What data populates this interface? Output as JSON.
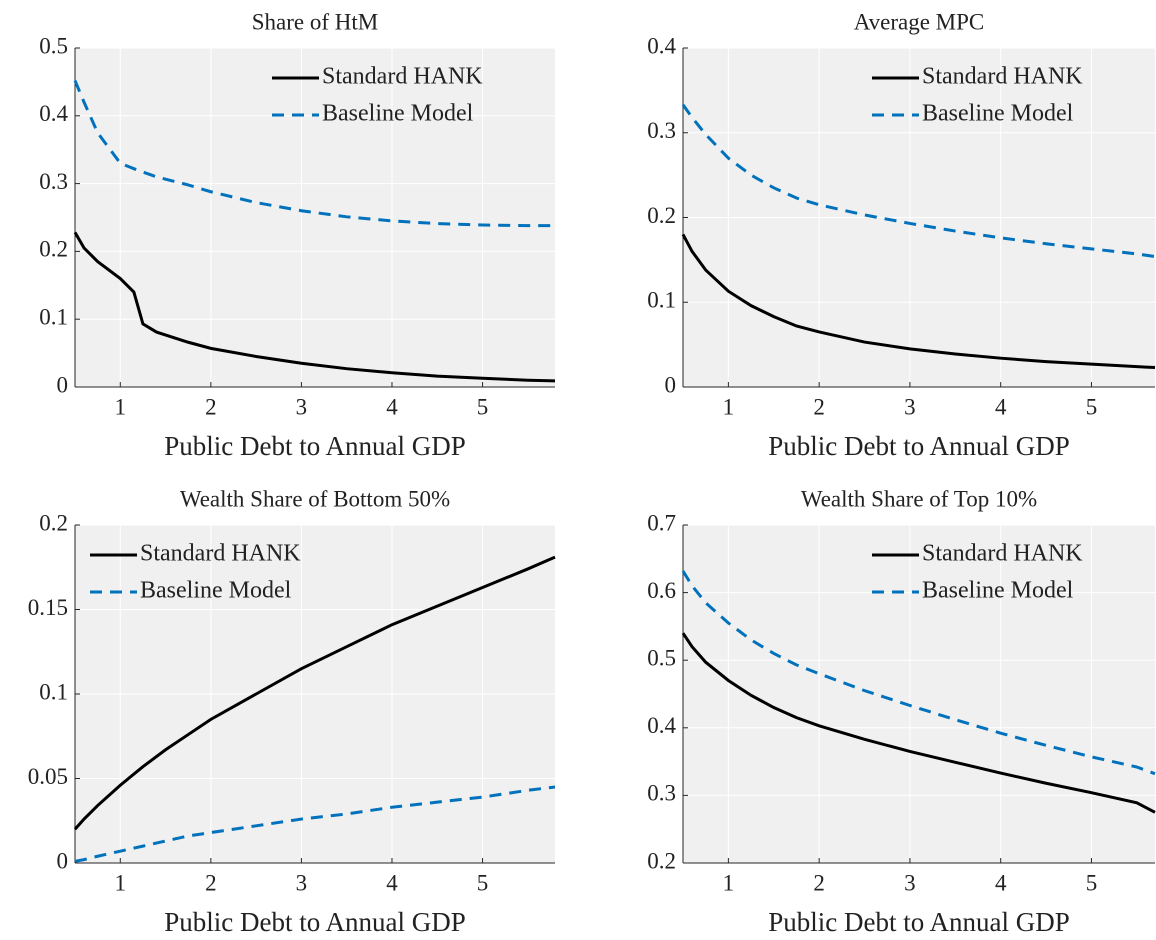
{
  "chart_data": [
    {
      "type": "line",
      "title": "Share of HtM",
      "xlabel": "Public Debt to Annual GDP",
      "x": [
        0.5,
        0.6,
        0.75,
        1,
        1.15,
        1.25,
        1.4,
        1.75,
        2,
        2.5,
        3,
        3.5,
        4,
        4.5,
        5,
        5.5,
        5.8
      ],
      "series": [
        {
          "name": "Standard HANK",
          "color": "#000000",
          "style": "solid",
          "values": [
            0.228,
            0.205,
            0.185,
            0.16,
            0.14,
            0.093,
            0.081,
            0.066,
            0.057,
            0.045,
            0.035,
            0.027,
            0.021,
            0.016,
            0.013,
            0.01,
            0.009
          ]
        },
        {
          "name": "Baseline Model",
          "color": "#0072bd",
          "style": "dashed",
          "values": [
            0.452,
            0.42,
            0.375,
            0.33,
            0.322,
            0.317,
            0.31,
            0.298,
            0.288,
            0.272,
            0.26,
            0.251,
            0.245,
            0.241,
            0.239,
            0.238,
            0.238
          ]
        }
      ],
      "xlim": [
        0.5,
        5.8
      ],
      "xticks": [
        1,
        2,
        3,
        4,
        5
      ],
      "ylim": [
        0,
        0.5
      ],
      "yticks": [
        0,
        0.1,
        0.2,
        0.3,
        0.4,
        0.5
      ],
      "grid": true,
      "legend": "upper right"
    },
    {
      "type": "line",
      "title": "Average MPC",
      "xlabel": "Public Debt to Annual GDP",
      "x": [
        0.5,
        0.6,
        0.75,
        1,
        1.25,
        1.5,
        1.75,
        2,
        2.5,
        3,
        3.5,
        4,
        4.5,
        5,
        5.5,
        5.7
      ],
      "series": [
        {
          "name": "Standard HANK",
          "color": "#000000",
          "style": "solid",
          "values": [
            0.18,
            0.16,
            0.138,
            0.113,
            0.096,
            0.083,
            0.072,
            0.065,
            0.053,
            0.045,
            0.039,
            0.034,
            0.03,
            0.027,
            0.024,
            0.023
          ]
        },
        {
          "name": "Baseline Model",
          "color": "#0072bd",
          "style": "dashed",
          "values": [
            0.333,
            0.318,
            0.298,
            0.27,
            0.25,
            0.235,
            0.223,
            0.215,
            0.203,
            0.193,
            0.184,
            0.176,
            0.169,
            0.163,
            0.157,
            0.154
          ]
        }
      ],
      "xlim": [
        0.5,
        5.7
      ],
      "xticks": [
        1,
        2,
        3,
        4,
        5
      ],
      "ylim": [
        0,
        0.4
      ],
      "yticks": [
        0,
        0.1,
        0.2,
        0.3,
        0.4
      ],
      "grid": true,
      "legend": "upper right"
    },
    {
      "type": "line",
      "title": "Wealth Share of Bottom 50%",
      "xlabel": "Public Debt to Annual GDP",
      "x": [
        0.5,
        0.6,
        0.75,
        1,
        1.25,
        1.5,
        1.75,
        2,
        2.5,
        3,
        3.5,
        4,
        4.5,
        5,
        5.5,
        5.8
      ],
      "series": [
        {
          "name": "Standard HANK",
          "color": "#000000",
          "style": "solid",
          "values": [
            0.02,
            0.026,
            0.034,
            0.046,
            0.057,
            0.067,
            0.076,
            0.085,
            0.1,
            0.115,
            0.128,
            0.141,
            0.152,
            0.163,
            0.174,
            0.181
          ]
        },
        {
          "name": "Baseline Model",
          "color": "#0072bd",
          "style": "dashed",
          "values": [
            0.001,
            0.002,
            0.004,
            0.007,
            0.01,
            0.013,
            0.016,
            0.018,
            0.022,
            0.026,
            0.029,
            0.033,
            0.036,
            0.039,
            0.043,
            0.045
          ]
        }
      ],
      "xlim": [
        0.5,
        5.8
      ],
      "xticks": [
        1,
        2,
        3,
        4,
        5
      ],
      "ylim": [
        0,
        0.2
      ],
      "yticks": [
        0,
        0.05,
        0.1,
        0.15,
        0.2
      ],
      "grid": true,
      "legend": "upper left"
    },
    {
      "type": "line",
      "title": "Wealth Share of Top 10%",
      "xlabel": "Public Debt to Annual GDP",
      "x": [
        0.5,
        0.6,
        0.75,
        1,
        1.25,
        1.5,
        1.75,
        2,
        2.5,
        3,
        3.5,
        4,
        4.5,
        5,
        5.5,
        5.7
      ],
      "series": [
        {
          "name": "Standard HANK",
          "color": "#000000",
          "style": "solid",
          "values": [
            0.54,
            0.52,
            0.497,
            0.47,
            0.448,
            0.43,
            0.415,
            0.403,
            0.383,
            0.365,
            0.349,
            0.333,
            0.318,
            0.304,
            0.289,
            0.275
          ]
        },
        {
          "name": "Baseline Model",
          "color": "#0072bd",
          "style": "dashed",
          "values": [
            0.632,
            0.61,
            0.585,
            0.555,
            0.53,
            0.51,
            0.493,
            0.48,
            0.455,
            0.433,
            0.412,
            0.392,
            0.374,
            0.357,
            0.342,
            0.332
          ]
        }
      ],
      "xlim": [
        0.5,
        5.7
      ],
      "xticks": [
        1,
        2,
        3,
        4,
        5
      ],
      "ylim": [
        0.2,
        0.7
      ],
      "yticks": [
        0.2,
        0.3,
        0.4,
        0.5,
        0.6,
        0.7
      ],
      "grid": true,
      "legend": "upper right"
    }
  ]
}
